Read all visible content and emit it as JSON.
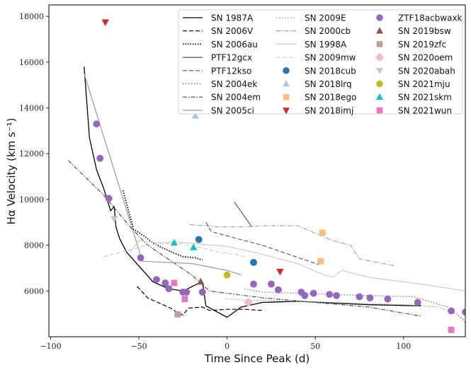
{
  "chart_data": {
    "type": "line",
    "title": "",
    "xlabel": "Time Since Peak (d)",
    "ylabel": "Hα Velocity (km s⁻¹)",
    "xlim": [
      -101,
      135
    ],
    "ylim": [
      4000,
      18500
    ],
    "grid": false,
    "legend_position": "top-right",
    "x_ticks": [
      -100,
      -50,
      0,
      50,
      100
    ],
    "x_tick_labels": [
      "−100",
      "−50",
      "0",
      "50",
      "100"
    ],
    "y_ticks": [
      6000,
      8000,
      10000,
      12000,
      14000,
      16000,
      18000
    ],
    "y_tick_labels": [
      "6000",
      "8000",
      "10000",
      "12000",
      "14000",
      "16000",
      "18000"
    ],
    "line_series": [
      {
        "name": "SN 1987A",
        "color": "#000000",
        "dash": "solid",
        "width": 1.3,
        "x": [
          -81,
          -78,
          -74,
          -70,
          -66,
          -64,
          -63,
          -61,
          -57,
          -42,
          -33,
          -25,
          -17,
          -14,
          -12,
          0,
          8,
          20,
          40,
          80,
          110
        ],
        "y": [
          15800,
          12700,
          11300,
          10500,
          9500,
          9700,
          8800,
          8300,
          7700,
          6400,
          6100,
          6000,
          6300,
          6400,
          5350,
          4850,
          5300,
          5500,
          5550,
          5400,
          5350
        ]
      },
      {
        "name": "SN 2006V",
        "color": "#000000",
        "dash": "6,3",
        "width": 1.2,
        "x": [
          -51,
          -45,
          -32,
          -28,
          -25,
          -22,
          -14,
          -10,
          0,
          10,
          20
        ],
        "y": [
          6200,
          5700,
          5250,
          5050,
          4950,
          5250,
          5300,
          5150,
          5200,
          5200,
          5150
        ]
      },
      {
        "name": "SN 2006au",
        "color": "#000000",
        "dash": "1.5,2",
        "width": 1.8,
        "x": [
          -59,
          -53,
          -47,
          -42,
          -37,
          -30,
          -25,
          -18,
          -14
        ],
        "y": [
          10400,
          8700,
          8400,
          8100,
          7900,
          7650,
          7500,
          7450,
          7350
        ]
      },
      {
        "name": "PTF12gcx",
        "color": "#555555",
        "dash": "solid",
        "width": 1.2,
        "x": [
          4,
          14
        ],
        "y": [
          9900,
          8800
        ]
      },
      {
        "name": "PTF12kso",
        "color": "#555555",
        "dash": "6,3",
        "width": 1.1,
        "x": [
          -12,
          -9,
          5,
          20,
          35,
          52
        ],
        "y": [
          9000,
          8600,
          8300,
          8000,
          7600,
          7150
        ]
      },
      {
        "name": "SN 2004ek",
        "color": "#777777",
        "dash": "1.5,2.5",
        "width": 1.3,
        "x": [
          10,
          20,
          40,
          60,
          80,
          105,
          110,
          125,
          135
        ],
        "y": [
          6100,
          5950,
          5900,
          5850,
          5800,
          5750,
          5650,
          5300,
          4700
        ]
      },
      {
        "name": "SN 2004em",
        "color": "#444444",
        "dash": "6,2,1.5,2",
        "width": 1.1,
        "x": [
          -90,
          -70,
          -55,
          -45,
          -20,
          -10,
          0,
          20,
          50,
          80,
          110
        ],
        "y": [
          11700,
          10200,
          8800,
          8000,
          6700,
          6000,
          5900,
          5700,
          5500,
          5300,
          4900
        ]
      },
      {
        "name": "SN 2005ci",
        "color": "#999999",
        "dash": "solid",
        "width": 1.2,
        "x": [
          -81,
          -48,
          -20,
          0,
          8
        ],
        "y": [
          15500,
          7300,
          7200,
          6900,
          6700
        ]
      },
      {
        "name": "SN 2009E",
        "color": "#999999",
        "dash": "1.5,2.5",
        "width": 1.2,
        "x": [
          -1,
          10,
          40,
          60,
          80,
          100,
          120,
          130,
          135
        ],
        "y": [
          5650,
          5600,
          5550,
          5500,
          5450,
          5400,
          5300,
          5000,
          4600
        ]
      },
      {
        "name": "SN 2000cb",
        "color": "#999999",
        "dash": "6,2,1.5,2",
        "width": 1.1,
        "x": [
          -21,
          -5,
          10,
          20,
          40,
          60,
          70,
          75,
          95
        ],
        "y": [
          8900,
          8800,
          8800,
          8850,
          8850,
          8200,
          8000,
          7400,
          7100
        ]
      },
      {
        "name": "SN 1998A",
        "color": "#cccccc",
        "dash": "solid",
        "width": 1.2,
        "x": [
          -55,
          -50,
          -40,
          -30,
          -15,
          0,
          20,
          40,
          55,
          60,
          65,
          80,
          110,
          135
        ],
        "y": [
          7700,
          8200,
          8100,
          8150,
          8050,
          7950,
          7600,
          7200,
          6700,
          6600,
          6900,
          6600,
          6300,
          6000
        ]
      },
      {
        "name": "SN 2009mw",
        "color": "#cccccc",
        "dash": "6,3",
        "width": 1.1,
        "x": [
          -70,
          -60,
          -45,
          -30,
          -15,
          -5,
          5,
          10
        ],
        "y": [
          7500,
          7700,
          8000,
          8100,
          7900,
          7700,
          7600,
          7500
        ]
      }
    ],
    "scatter_series": [
      {
        "name": "SN 2018cub",
        "color": "#1f77b4",
        "marker": "circle",
        "x": [
          -16,
          15
        ],
        "y": [
          8250,
          7250
        ]
      },
      {
        "name": "SN 2018lrq",
        "color": "#aec7e8",
        "marker": "triangle-up",
        "x": [
          -18
        ],
        "y": [
          13650
        ]
      },
      {
        "name": "SN 2018ego",
        "color": "#ffbb78",
        "marker": "square",
        "x": [
          54,
          53
        ],
        "y": [
          8550,
          7300
        ]
      },
      {
        "name": "SN 2018imj",
        "color": "#d62728",
        "marker": "triangle-down",
        "x": [
          -69,
          30
        ],
        "y": [
          17750,
          6850
        ]
      },
      {
        "name": "ZTF18acbwaxk",
        "color": "#9467bd",
        "marker": "circle",
        "x": [
          -74,
          -72,
          -67,
          -49,
          -40,
          -35,
          -33,
          -25,
          -23,
          -14,
          15,
          25,
          29,
          42,
          44,
          49,
          58,
          62,
          75,
          81,
          91,
          108,
          127,
          135
        ],
        "y": [
          13300,
          11800,
          10050,
          7450,
          6500,
          6350,
          6100,
          5950,
          5950,
          5950,
          6300,
          6300,
          6050,
          5950,
          5800,
          5900,
          5850,
          5800,
          5750,
          5700,
          5650,
          5500,
          5130,
          5080
        ]
      },
      {
        "name": "SN 2019bsw",
        "color": "#8c564b",
        "marker": "triangle-up",
        "x": [
          -15
        ],
        "y": [
          6400
        ]
      },
      {
        "name": "SN 2019zfc",
        "color": "#c49c94",
        "marker": "square",
        "x": [
          -28
        ],
        "y": [
          4980
        ]
      },
      {
        "name": "SN 2020oem",
        "color": "#f7b6d2",
        "marker": "diamond",
        "x": [
          12
        ],
        "y": [
          5500
        ]
      },
      {
        "name": "SN 2020abah",
        "color": "#c7c7c7",
        "marker": "triangle-down",
        "x": [
          -64
        ],
        "y": [
          9150
        ]
      },
      {
        "name": "SN 2021mju",
        "color": "#bcbd22",
        "marker": "circle",
        "x": [
          0
        ],
        "y": [
          6700
        ]
      },
      {
        "name": "SN 2021skm",
        "color": "#17becf",
        "marker": "triangle-up",
        "x": [
          -30,
          -19
        ],
        "y": [
          8100,
          7900
        ]
      },
      {
        "name": "SN 2021wun",
        "color": "#e377c2",
        "marker": "square",
        "x": [
          -30,
          -24,
          127
        ],
        "y": [
          6350,
          5650,
          4300
        ]
      }
    ],
    "legend_columns": [
      [
        "SN 1987A",
        "SN 2006V",
        "SN 2006au",
        "PTF12gcx",
        "PTF12kso",
        "SN 2004ek",
        "SN 2004em",
        "SN 2005ci"
      ],
      [
        "SN 2009E",
        "SN 2000cb",
        "SN 1998A",
        "SN 2009mw",
        "SN 2018cub",
        "SN 2018lrq",
        "SN 2018ego",
        "SN 2018imj"
      ],
      [
        "ZTF18acbwaxk",
        "SN 2019bsw",
        "SN 2019zfc",
        "SN 2020oem",
        "SN 2020abah",
        "SN 2021mju",
        "SN 2021skm",
        "SN 2021wun"
      ]
    ]
  }
}
